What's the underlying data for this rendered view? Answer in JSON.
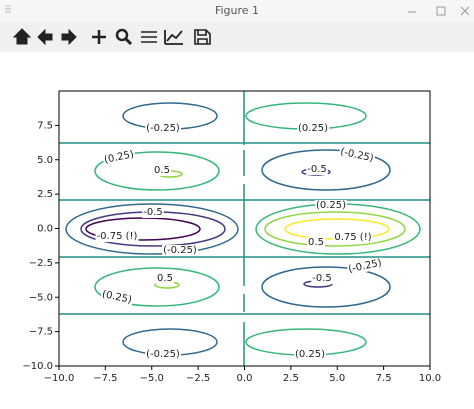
{
  "window": {
    "title": "Figure 1"
  },
  "chart_data": {
    "type": "contour",
    "levels": [
      -0.75,
      -0.5,
      -0.25,
      0,
      0.25,
      0.5,
      0.75
    ],
    "level_labels": [
      "-0.75 (!)",
      "-0.5",
      "(-0.25)",
      null,
      "(0.25)",
      "0.5",
      "0.75 (!)"
    ],
    "colors": [
      "#440154",
      "#443983",
      "#31688e",
      "#21918c",
      "#35b779",
      "#90d743",
      "#fde725"
    ],
    "xlim": [
      -10,
      10
    ],
    "ylim": [
      -10,
      10
    ],
    "xticks": [
      {
        "value": -10,
        "label": "−10.0"
      },
      {
        "value": -7.5,
        "label": "−7.5"
      },
      {
        "value": -5,
        "label": "−5.0"
      },
      {
        "value": -2.5,
        "label": "−2.5"
      },
      {
        "value": 0,
        "label": "0.0"
      },
      2.5,
      {
        "value": 5,
        "label": "5.0"
      },
      7.5,
      {
        "value": 10,
        "label": "10.0"
      }
    ],
    "yticks": [
      {
        "value": -10,
        "label": "−10.0"
      },
      {
        "value": -7.5,
        "label": "−7.5"
      },
      {
        "value": -5,
        "label": "−5.0"
      },
      {
        "value": -2.5,
        "label": "−2.5"
      },
      {
        "value": 0,
        "label": "0.0"
      },
      2.5,
      {
        "value": 5,
        "label": "5.0"
      },
      7.5
    ]
  }
}
